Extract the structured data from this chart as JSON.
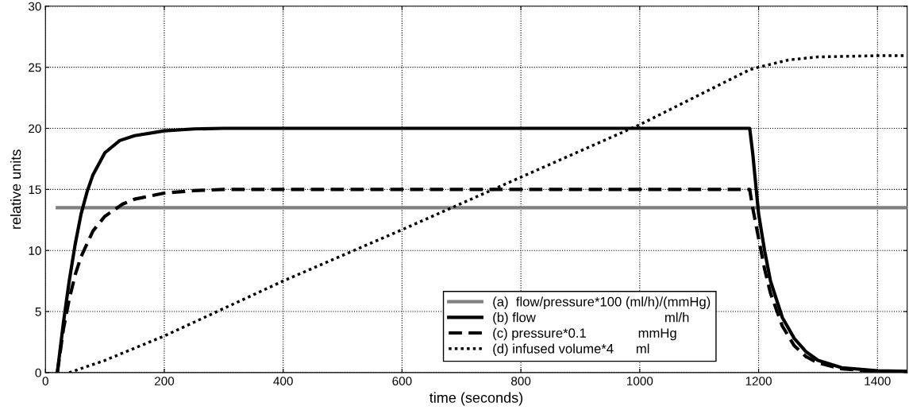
{
  "chart_data": {
    "type": "line",
    "xlabel": "time (seconds)",
    "ylabel": "relative units",
    "xlim": [
      0,
      1450
    ],
    "xticks": [
      0,
      200,
      400,
      600,
      800,
      1000,
      1200,
      1400
    ],
    "ylim": [
      0,
      30
    ],
    "yticks": [
      0,
      5,
      10,
      15,
      20,
      25,
      30
    ],
    "grid": true,
    "legend": "bottom",
    "marker": "none",
    "series": [
      {
        "name": "(a)  flow/pressure*100 (ml/h)/(mmHg)",
        "color": "#808080",
        "line_style": "solid",
        "x": [
          20,
          1450
        ],
        "values": [
          13.5,
          13.5
        ]
      },
      {
        "name": "(b) flow                                   ml/h",
        "color": "#000000",
        "line_style": "solid",
        "x": [
          20,
          30,
          40,
          50,
          60,
          70,
          80,
          100,
          125,
          150,
          200,
          250,
          300,
          1185,
          1190,
          1195,
          1200,
          1210,
          1220,
          1240,
          1260,
          1280,
          1300,
          1340,
          1400,
          1450
        ],
        "values": [
          0,
          4,
          7.5,
          10.5,
          13,
          14.8,
          16.2,
          18,
          19,
          19.4,
          19.8,
          19.95,
          20,
          20,
          18,
          15.5,
          13,
          10,
          7.5,
          4.5,
          2.8,
          1.7,
          1,
          0.4,
          0.15,
          0.1
        ]
      },
      {
        "name": "(c) pressure*0.1              mmHg",
        "color": "#000000",
        "line_style": "dashed",
        "x": [
          20,
          30,
          40,
          50,
          60,
          80,
          100,
          130,
          150,
          200,
          250,
          300,
          1185,
          1190,
          1200,
          1210,
          1220,
          1240,
          1260,
          1280,
          1300,
          1340,
          1400,
          1450
        ],
        "values": [
          0,
          3.5,
          6,
          8,
          9.5,
          11.6,
          12.8,
          13.8,
          14.2,
          14.7,
          14.9,
          15,
          15,
          13.5,
          11,
          8.5,
          6.5,
          3.8,
          2.2,
          1.3,
          0.8,
          0.3,
          0.1,
          0.05
        ]
      },
      {
        "name": "(d) infused volume*4      ml",
        "color": "#000000",
        "line_style": "dotted",
        "x": [
          40,
          100,
          200,
          400,
          600,
          800,
          1000,
          1185,
          1200,
          1250,
          1300,
          1400,
          1450
        ],
        "values": [
          0,
          1,
          3,
          7.5,
          11.7,
          16,
          20.3,
          24.8,
          25,
          25.6,
          25.85,
          25.95,
          25.95
        ]
      }
    ]
  }
}
